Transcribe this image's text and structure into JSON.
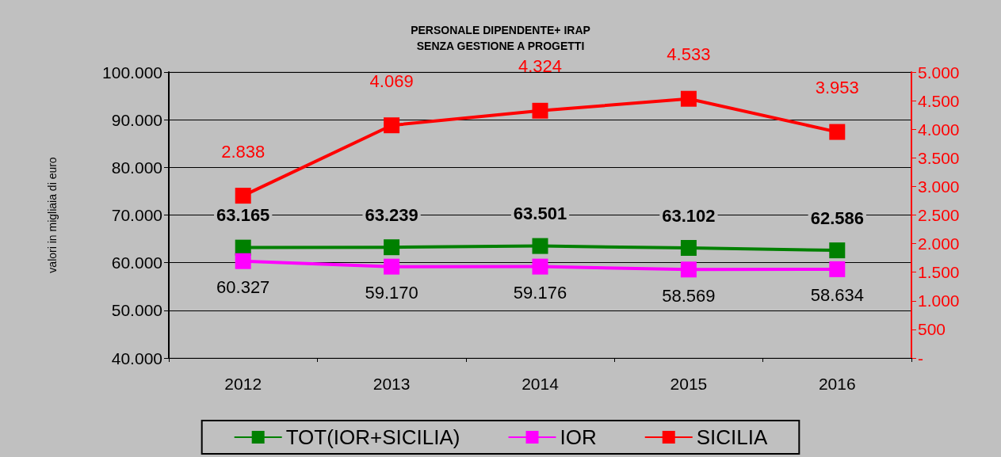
{
  "chart_data": {
    "type": "line",
    "title": "PERSONALE DIPENDENTE+ IRAP",
    "subtitle": "SENZA GESTIONE A PROGETTI",
    "ylabel": "valori in migliaia di euro",
    "categories": [
      "2012",
      "2013",
      "2014",
      "2015",
      "2016"
    ],
    "series": [
      {
        "name": "TOT(IOR+SICILIA)",
        "color": "#008000",
        "values": [
          63165,
          63239,
          63501,
          63102,
          62586
        ],
        "value_labels": [
          "63.165",
          "63.239",
          "63.501",
          "63.102",
          "62.586"
        ]
      },
      {
        "name": "IOR",
        "color": "#ff00ff",
        "values": [
          60327,
          59170,
          59176,
          58569,
          58634
        ],
        "value_labels": [
          "60.327",
          "59.170",
          "59.176",
          "58.569",
          "58.634"
        ]
      },
      {
        "name": "SICILIA",
        "color": "#ff0000",
        "axis": "y2",
        "values": [
          2838,
          4069,
          4324,
          4533,
          3953
        ],
        "value_labels": [
          "2.838",
          "4.069",
          "4.324",
          "4.533",
          "3.953"
        ]
      }
    ],
    "ylim": [
      40000,
      100000
    ],
    "yticks": [
      {
        "value": 40000,
        "label": "40.000"
      },
      {
        "value": 50000,
        "label": "50.000"
      },
      {
        "value": 60000,
        "label": "60.000"
      },
      {
        "value": 70000,
        "label": "70.000"
      },
      {
        "value": 80000,
        "label": "80.000"
      },
      {
        "value": 90000,
        "label": "90.000"
      },
      {
        "value": 100000,
        "label": "100.000"
      }
    ],
    "y2lim": [
      0,
      5000
    ],
    "y2ticks": [
      {
        "value": 0,
        "label": "-"
      },
      500,
      {
        "value": 1000,
        "label": "1.000"
      },
      {
        "value": 1500,
        "label": "1.500"
      },
      {
        "value": 2000,
        "label": "2.000"
      },
      {
        "value": 2500,
        "label": "2.500"
      },
      {
        "value": 3000,
        "label": "3.000"
      },
      {
        "value": 3500,
        "label": "3.500"
      },
      {
        "value": 4000,
        "label": "4.000"
      },
      {
        "value": 4500,
        "label": "4.500"
      },
      {
        "value": 5000,
        "label": "5.000"
      }
    ],
    "grid": "y",
    "legend": "bottom",
    "marker": "square",
    "line_style": "solid"
  }
}
